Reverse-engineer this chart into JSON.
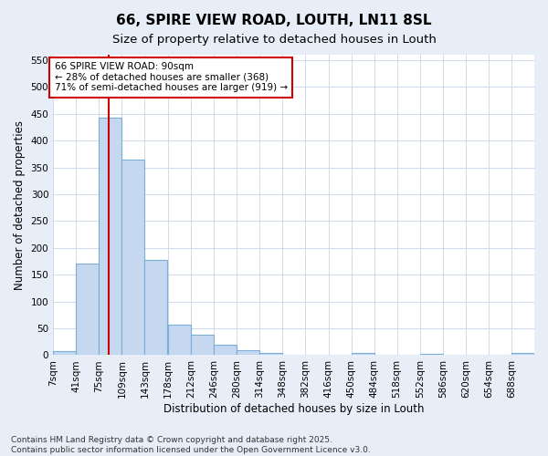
{
  "title": "66, SPIRE VIEW ROAD, LOUTH, LN11 8SL",
  "subtitle": "Size of property relative to detached houses in Louth",
  "xlabel": "Distribution of detached houses by size in Louth",
  "ylabel": "Number of detached properties",
  "bar_color": "#c5d8f0",
  "bar_edge_color": "#7aaed6",
  "figure_bg": "#e8eef8",
  "axes_bg": "#ffffff",
  "grid_color": "#c8d4e8",
  "annotation_box_edge": "#cc0000",
  "annotation_text_line1": "66 SPIRE VIEW ROAD: 90sqm",
  "annotation_text_line2": "← 28% of detached houses are smaller (368)",
  "annotation_text_line3": "71% of semi-detached houses are larger (919) →",
  "vline_x": 90,
  "vline_color": "#cc0000",
  "bin_lefts": [
    7,
    41,
    75,
    109,
    143,
    178,
    212,
    246,
    280,
    314,
    348,
    382,
    416,
    450,
    484,
    518,
    552,
    586,
    620,
    654,
    688
  ],
  "bin_width": 34,
  "values": [
    8,
    170,
    443,
    365,
    178,
    57,
    39,
    20,
    10,
    5,
    0,
    0,
    0,
    4,
    0,
    0,
    2,
    0,
    0,
    0,
    4
  ],
  "categories": [
    "7sqm",
    "41sqm",
    "75sqm",
    "109sqm",
    "143sqm",
    "178sqm",
    "212sqm",
    "246sqm",
    "280sqm",
    "314sqm",
    "348sqm",
    "382sqm",
    "416sqm",
    "450sqm",
    "484sqm",
    "518sqm",
    "552sqm",
    "586sqm",
    "620sqm",
    "654sqm",
    "688sqm"
  ],
  "ylim": [
    0,
    560
  ],
  "yticks": [
    0,
    50,
    100,
    150,
    200,
    250,
    300,
    350,
    400,
    450,
    500,
    550
  ],
  "xlim_left": 7,
  "xlim_right": 722,
  "footer": "Contains HM Land Registry data © Crown copyright and database right 2025.\nContains public sector information licensed under the Open Government Licence v3.0.",
  "title_fontsize": 11,
  "subtitle_fontsize": 9.5,
  "axis_label_fontsize": 8.5,
  "tick_fontsize": 7.5,
  "annotation_fontsize": 7.5,
  "footer_fontsize": 6.5
}
